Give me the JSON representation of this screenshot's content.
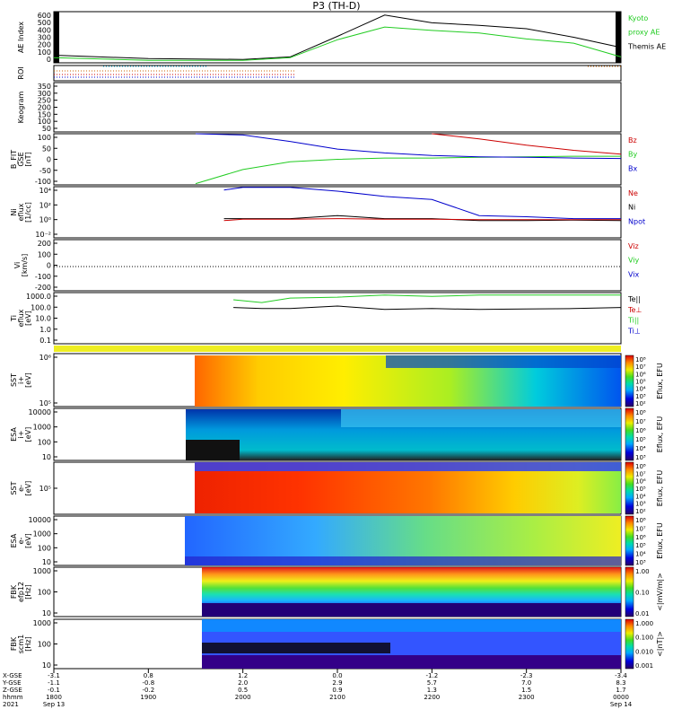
{
  "title": "P3 (TH-D)",
  "panels": [
    {
      "id": "ae",
      "ylabel": [
        "AE Index"
      ],
      "ticks": [
        "600",
        "500",
        "400",
        "300",
        "200",
        "100",
        "0"
      ],
      "legend": [
        {
          "text": "Kyoto",
          "color": "#22cc22"
        },
        {
          "text": "proxy AE",
          "color": "#22cc22"
        },
        {
          "text": "Themis AE",
          "color": "#000000"
        }
      ]
    },
    {
      "id": "roi",
      "ylabel": [
        "ROI"
      ],
      "ticks": [],
      "legend": []
    },
    {
      "id": "keogram",
      "ylabel": [
        "Keogram"
      ],
      "ticks": [
        "350",
        "300",
        "250",
        "200",
        "150",
        "100",
        "50"
      ],
      "legend": []
    },
    {
      "id": "bfit",
      "ylabel": [
        "B_FIT",
        "GSE",
        "[nT]"
      ],
      "ticks": [
        "100",
        "50",
        "0",
        "-50",
        "-100"
      ],
      "legend": [
        {
          "text": "Bz",
          "color": "#cc0000"
        },
        {
          "text": "By",
          "color": "#22cc22"
        },
        {
          "text": "Bx",
          "color": "#0000cc"
        }
      ]
    },
    {
      "id": "ni",
      "ylabel": [
        "Ni",
        "eflux",
        "[1/cc]"
      ],
      "ticks": [
        "10⁴",
        "10²",
        "10⁰",
        "10⁻²"
      ],
      "legend": [
        {
          "text": "Ne",
          "color": "#cc0000"
        },
        {
          "text": "Ni",
          "color": "#000000"
        },
        {
          "text": "Npot",
          "color": "#0000cc"
        }
      ]
    },
    {
      "id": "vi",
      "ylabel": [
        "Vi",
        "[km/s]"
      ],
      "ticks": [
        "200",
        "100",
        "0",
        "-100",
        "-200"
      ],
      "legend": [
        {
          "text": "Viz",
          "color": "#cc0000"
        },
        {
          "text": "Viy",
          "color": "#22cc22"
        },
        {
          "text": "Vix",
          "color": "#0000cc"
        }
      ]
    },
    {
      "id": "ti",
      "ylabel": [
        "Ti",
        "eflux",
        "[eV]"
      ],
      "ticks": [
        "1000.0",
        "100.0",
        "10.0",
        "1.0",
        "0.1"
      ],
      "legend": [
        {
          "text": "Te||",
          "color": "#000000"
        },
        {
          "text": "Te⊥",
          "color": "#cc0000"
        },
        {
          "text": "Ti||",
          "color": "#22cc22"
        },
        {
          "text": "Ti⊥",
          "color": "#0000cc"
        }
      ]
    },
    {
      "id": "sst_i",
      "ylabel": [
        "SST",
        "i+",
        "[eV]"
      ],
      "ticks": [
        "10⁶",
        "10⁵"
      ],
      "legend": []
    },
    {
      "id": "esa_i",
      "ylabel": [
        "ESA",
        "i+",
        "[eV]"
      ],
      "ticks": [
        "10000",
        "1000",
        "100",
        "10"
      ],
      "legend": []
    },
    {
      "id": "sst_e",
      "ylabel": [
        "SST",
        "e-",
        "[eV]"
      ],
      "ticks": [
        "10⁵"
      ],
      "legend": []
    },
    {
      "id": "esa_e",
      "ylabel": [
        "ESA",
        "e-",
        "[eV]"
      ],
      "ticks": [
        "10000",
        "1000",
        "100",
        "10"
      ],
      "legend": []
    },
    {
      "id": "fbk1",
      "ylabel": [
        "FBK",
        "efp12",
        "[Hz]"
      ],
      "ticks": [
        "1000",
        "100",
        "10"
      ],
      "legend": []
    },
    {
      "id": "fbk2",
      "ylabel": [
        "FBK",
        "scm1",
        "[Hz]"
      ],
      "ticks": [
        "1000",
        "100",
        "10"
      ],
      "legend": []
    }
  ],
  "colorbars": [
    {
      "label": "Eflux, EFU",
      "ticks": [
        "10⁸",
        "10⁷",
        "10⁶",
        "10⁵",
        "10⁴",
        "10³",
        "10²"
      ]
    },
    {
      "label": "Eflux, EFU",
      "ticks": [
        "10⁸",
        "10⁷",
        "10⁶",
        "10⁵",
        "10⁴",
        "10³"
      ]
    },
    {
      "label": "Eflux, EFU",
      "ticks": [
        "10⁸",
        "10⁷",
        "10⁶",
        "10⁵",
        "10⁴",
        "10³",
        "10²"
      ]
    },
    {
      "label": "Eflux, EFU",
      "ticks": [
        "10⁸",
        "10⁷",
        "10⁶",
        "10⁵",
        "10⁴",
        "10³"
      ]
    },
    {
      "label": "<|mV/m|>",
      "ticks": [
        "1.00",
        "0.10",
        "0.01"
      ]
    },
    {
      "label": "<|nT|>",
      "ticks": [
        "1.000",
        "0.100",
        "0.010",
        "0.001"
      ]
    }
  ],
  "xaxis": {
    "row_labels": [
      "X-GSE",
      "Y-GSE",
      "Z-GSE",
      "hhmm",
      "2021"
    ],
    "columns": [
      {
        "x": "-3.1",
        "y": "-1.1",
        "z": "-0.1",
        "hhmm": "1800",
        "date": "Sep 13"
      },
      {
        "x": "0.8",
        "y": "-0.8",
        "z": "-0.2",
        "hhmm": "1900",
        "date": ""
      },
      {
        "x": "1.2",
        "y": "2.0",
        "z": "0.5",
        "hhmm": "2000",
        "date": ""
      },
      {
        "x": "0.0",
        "y": "2.9",
        "z": "0.9",
        "hhmm": "2100",
        "date": ""
      },
      {
        "x": "-1.2",
        "y": "5.7",
        "z": "1.3",
        "hhmm": "2200",
        "date": ""
      },
      {
        "x": "-2.3",
        "y": "7.0",
        "z": "1.5",
        "hhmm": "2300",
        "date": ""
      },
      {
        "x": "-3.4",
        "y": "8.3",
        "z": "1.7",
        "hhmm": "0000",
        "date": "Sep 14"
      }
    ]
  },
  "chart_data": [
    {
      "type": "line",
      "title": "P3 (TH-D)",
      "ylabel": "AE Index",
      "ylim": [
        0,
        600
      ],
      "x_hours": [
        18.0,
        19.0,
        20.0,
        20.5,
        21.0,
        21.5,
        22.0,
        22.5,
        23.0,
        23.5,
        24.0
      ],
      "series": [
        {
          "name": "Themis AE",
          "values": [
            90,
            50,
            40,
            70,
            310,
            560,
            470,
            440,
            400,
            300,
            180
          ]
        },
        {
          "name": "Kyoto proxy AE",
          "values": [
            60,
            30,
            30,
            60,
            270,
            420,
            380,
            350,
            280,
            230,
            70
          ]
        }
      ]
    },
    {
      "type": "line",
      "ylabel": "B_FIT GSE [nT]",
      "ylim": [
        -100,
        100
      ],
      "x_hours": [
        19.5,
        20.0,
        20.5,
        21.0,
        21.5,
        22.0,
        22.5,
        23.0,
        23.5,
        24.0
      ],
      "series": [
        {
          "name": "Bz",
          "values": [
            null,
            null,
            null,
            null,
            null,
            100,
            80,
            55,
            35,
            20
          ]
        },
        {
          "name": "By",
          "values": [
            -95,
            -40,
            -10,
            0,
            5,
            5,
            8,
            10,
            12,
            12
          ]
        },
        {
          "name": "Bx",
          "values": [
            100,
            95,
            70,
            40,
            25,
            15,
            10,
            8,
            5,
            3
          ]
        }
      ]
    },
    {
      "type": "line",
      "ylabel": "Ni eflux [1/cc]",
      "log_y": true,
      "ylim": [
        0.001,
        100000
      ],
      "x_hours": [
        19.8,
        20.0,
        20.5,
        21.0,
        21.5,
        22.0,
        22.5,
        23.0,
        23.5,
        24.0
      ],
      "series": [
        {
          "name": "Npot",
          "values": [
            30000,
            80000,
            80000,
            20000,
            3000,
            1000,
            3,
            2,
            1,
            1
          ]
        },
        {
          "name": "Ni",
          "values": [
            1,
            1,
            1,
            3,
            1,
            1,
            0.5,
            0.5,
            0.6,
            0.5
          ]
        },
        {
          "name": "Ne",
          "values": [
            0.5,
            0.8,
            0.8,
            1,
            0.8,
            0.8,
            0.7,
            0.7,
            0.7,
            0.7
          ]
        }
      ]
    },
    {
      "type": "line",
      "ylabel": "Ti eflux [eV]",
      "log_y": true,
      "ylim": [
        0.1,
        3000
      ],
      "x_hours": [
        19.9,
        20.2,
        20.5,
        21.0,
        21.5,
        22.0,
        22.5,
        23.0,
        23.5,
        24.0
      ],
      "series": [
        {
          "name": "Ti||",
          "values": [
            700,
            400,
            1000,
            1200,
            1800,
            1400,
            1800,
            1800,
            1800,
            1800
          ]
        },
        {
          "name": "Te||",
          "values": [
            150,
            120,
            120,
            200,
            100,
            120,
            100,
            110,
            120,
            150
          ]
        }
      ]
    }
  ],
  "colors": {
    "axis": "#000000",
    "bz": "#cc0000",
    "by": "#22cc22",
    "bx": "#0000cc",
    "ae": "#000000",
    "kyoto": "#22cc22"
  }
}
